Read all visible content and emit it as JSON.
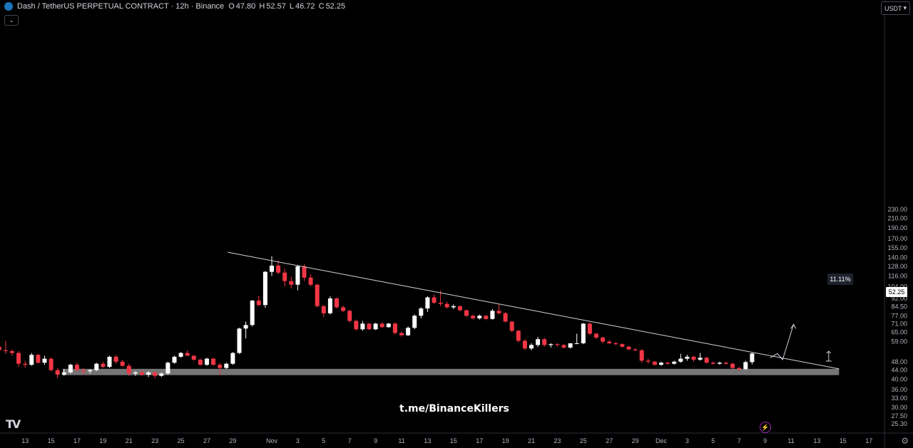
{
  "header": {
    "symbol": "Dash / TetherUS PERPETUAL CONTRACT · 12h · Binance",
    "o_label": "O",
    "o": "47.80",
    "h_label": "H",
    "h": "52.57",
    "l_label": "L",
    "l": "46.72",
    "c_label": "C",
    "c": "52.25"
  },
  "currency": "USDT",
  "watermark": "t.me/BinanceKillers",
  "tv_logo": "TV",
  "current_price": "52.25",
  "measure_label": "11.11%",
  "colors": {
    "up": "#ffffff",
    "down": "#f23645",
    "background": "#000000",
    "zone": "#8a8a8a",
    "trendline": "#d1d4dc"
  },
  "icons": [
    "collapse-chevron-icon",
    "currency-dropdown-icon",
    "lightning-icon",
    "settings-gear-icon"
  ],
  "chart_data": {
    "type": "candlestick",
    "scale": "log",
    "timeframe": "12h",
    "y_ticks": [
      230.0,
      210.0,
      190.0,
      170.0,
      155.0,
      140.0,
      128.0,
      116.0,
      104.0,
      92.0,
      84.5,
      77.0,
      71.0,
      65.0,
      59.0,
      52.25,
      48.0,
      44.0,
      40.0,
      36.0,
      33.0,
      30.0,
      27.5,
      25.3
    ],
    "y_tick_labels": [
      "230.00",
      "210.00",
      "190.00",
      "170.00",
      "155.00",
      "140.00",
      "128.00",
      "116.00",
      "104.00",
      "92.00",
      "84.50",
      "77.00",
      "71.00",
      "65.00",
      "59.00",
      "",
      "48.00",
      "44.00",
      "40.00",
      "36.00",
      "33.00",
      "30.00",
      "27.50",
      "25.30"
    ],
    "x_tick_labels": [
      "13",
      "15",
      "17",
      "19",
      "21",
      "23",
      "25",
      "27",
      "29",
      "Nov",
      "3",
      "5",
      "7",
      "9",
      "11",
      "13",
      "15",
      "17",
      "19",
      "21",
      "23",
      "25",
      "27",
      "29",
      "Dec",
      "3",
      "5",
      "7",
      "9",
      "11",
      "13",
      "15",
      "17"
    ],
    "x_tick_days": [
      -19,
      -17,
      -15,
      -13,
      -11,
      -9,
      -7,
      -5,
      -3,
      0,
      2,
      4,
      6,
      8,
      10,
      12,
      14,
      16,
      18,
      20,
      22,
      24,
      26,
      28,
      30,
      32,
      34,
      36,
      38,
      40,
      42,
      44,
      46
    ],
    "candles": [
      [
        39.5,
        56.5,
        38.0,
        56.0
      ],
      [
        56.0,
        58.5,
        53.5,
        54.0
      ],
      [
        54.0,
        59.5,
        52.0,
        53.5
      ],
      [
        53.5,
        54.5,
        51.0,
        52.5
      ],
      [
        52.5,
        53.5,
        45.5,
        47.0
      ],
      [
        47.0,
        48.5,
        45.0,
        46.5
      ],
      [
        46.5,
        52.5,
        46.0,
        51.5
      ],
      [
        51.5,
        52.0,
        47.0,
        47.5
      ],
      [
        47.5,
        51.0,
        46.5,
        49.5
      ],
      [
        49.5,
        50.0,
        43.5,
        44.0
      ],
      [
        44.0,
        45.0,
        40.5,
        42.0
      ],
      [
        42.0,
        44.5,
        41.5,
        43.0
      ],
      [
        43.0,
        47.0,
        42.5,
        46.5
      ],
      [
        46.5,
        47.5,
        43.5,
        44.0
      ],
      [
        44.0,
        45.0,
        42.0,
        43.5
      ],
      [
        43.5,
        44.5,
        42.5,
        44.0
      ],
      [
        44.0,
        47.5,
        43.5,
        47.0
      ],
      [
        47.0,
        48.0,
        45.0,
        45.5
      ],
      [
        45.5,
        51.0,
        45.0,
        50.5
      ],
      [
        50.5,
        51.5,
        47.0,
        48.0
      ],
      [
        48.0,
        49.0,
        45.5,
        46.0
      ],
      [
        46.0,
        47.0,
        41.5,
        42.5
      ],
      [
        42.5,
        43.5,
        41.5,
        43.0
      ],
      [
        43.0,
        44.0,
        41.5,
        42.0
      ],
      [
        42.0,
        43.5,
        41.0,
        43.0
      ],
      [
        43.0,
        43.5,
        40.5,
        41.5
      ],
      [
        41.5,
        43.0,
        41.0,
        42.5
      ],
      [
        42.5,
        48.0,
        42.0,
        47.5
      ],
      [
        47.5,
        51.0,
        47.0,
        50.5
      ],
      [
        50.5,
        53.0,
        50.0,
        52.5
      ],
      [
        52.5,
        54.0,
        51.0,
        51.0
      ],
      [
        51.0,
        51.5,
        48.5,
        49.0
      ],
      [
        49.0,
        49.5,
        46.0,
        46.5
      ],
      [
        46.5,
        50.0,
        46.0,
        49.5
      ],
      [
        49.5,
        50.0,
        46.0,
        46.5
      ],
      [
        46.5,
        47.5,
        42.0,
        45.0
      ],
      [
        45.0,
        47.5,
        44.5,
        47.0
      ],
      [
        47.0,
        53.0,
        46.5,
        52.5
      ],
      [
        52.5,
        68.0,
        52.0,
        67.5
      ],
      [
        67.5,
        72.5,
        61.0,
        70.0
      ],
      [
        70.0,
        90.5,
        69.0,
        90.0
      ],
      [
        90.0,
        94.5,
        85.0,
        86.0
      ],
      [
        86.0,
        122.0,
        83.5,
        121.0
      ],
      [
        121.0,
        142.0,
        116.0,
        129.0
      ],
      [
        129.0,
        136.0,
        118.0,
        120.0
      ],
      [
        120.0,
        125.0,
        104.0,
        110.0
      ],
      [
        110.0,
        115.0,
        102.0,
        106.0
      ],
      [
        106.0,
        130.0,
        100.0,
        128.0
      ],
      [
        128.0,
        131.0,
        110.0,
        114.0
      ],
      [
        114.0,
        118.0,
        104.0,
        106.0
      ],
      [
        106.0,
        107.0,
        84.0,
        85.0
      ],
      [
        85.0,
        86.0,
        76.0,
        79.0
      ],
      [
        79.0,
        94.0,
        78.0,
        92.0
      ],
      [
        92.0,
        93.0,
        83.0,
        84.0
      ],
      [
        84.0,
        85.5,
        80.0,
        81.0
      ],
      [
        81.0,
        82.0,
        72.0,
        73.0
      ],
      [
        73.0,
        74.0,
        66.0,
        67.0
      ],
      [
        67.0,
        73.0,
        66.0,
        71.0
      ],
      [
        71.0,
        71.5,
        66.5,
        67.0
      ],
      [
        67.0,
        71.5,
        66.5,
        71.0
      ],
      [
        71.0,
        72.0,
        68.0,
        68.5
      ],
      [
        68.5,
        71.5,
        68.0,
        71.0
      ],
      [
        71.0,
        72.0,
        63.5,
        64.5
      ],
      [
        64.5,
        65.5,
        62.0,
        63.0
      ],
      [
        63.0,
        69.0,
        62.5,
        68.0
      ],
      [
        68.0,
        78.0,
        67.0,
        77.0
      ],
      [
        77.0,
        84.0,
        75.0,
        83.0
      ],
      [
        83.0,
        94.0,
        80.0,
        93.0
      ],
      [
        93.0,
        96.0,
        87.0,
        88.0
      ],
      [
        88.0,
        100.0,
        85.0,
        87.0
      ],
      [
        87.0,
        89.0,
        83.0,
        84.0
      ],
      [
        84.0,
        86.5,
        82.5,
        85.0
      ],
      [
        85.0,
        85.5,
        80.5,
        81.5
      ],
      [
        81.5,
        82.0,
        76.0,
        77.0
      ],
      [
        77.0,
        78.0,
        74.0,
        75.0
      ],
      [
        75.0,
        78.0,
        74.0,
        77.0
      ],
      [
        77.0,
        77.5,
        73.5,
        74.5
      ],
      [
        74.5,
        82.5,
        74.0,
        81.0
      ],
      [
        81.0,
        87.0,
        78.0,
        79.0
      ],
      [
        79.0,
        80.0,
        72.0,
        72.5
      ],
      [
        72.5,
        73.0,
        65.0,
        66.0
      ],
      [
        66.0,
        66.5,
        58.5,
        59.5
      ],
      [
        59.5,
        60.5,
        54.0,
        55.0
      ],
      [
        55.0,
        58.0,
        54.0,
        57.0
      ],
      [
        57.0,
        62.0,
        56.0,
        60.5
      ],
      [
        60.5,
        61.5,
        56.0,
        57.0
      ],
      [
        57.0,
        58.0,
        55.5,
        57.5
      ],
      [
        57.5,
        58.0,
        56.0,
        57.0
      ],
      [
        57.0,
        57.5,
        55.0,
        55.5
      ],
      [
        55.5,
        58.0,
        55.0,
        58.0
      ],
      [
        58.0,
        64.0,
        57.5,
        58.0
      ],
      [
        58.0,
        71.5,
        57.5,
        71.0
      ],
      [
        71.0,
        72.0,
        63.0,
        64.0
      ],
      [
        64.0,
        64.5,
        60.5,
        61.5
      ],
      [
        61.5,
        62.0,
        58.0,
        59.0
      ],
      [
        59.0,
        60.0,
        57.5,
        58.0
      ],
      [
        58.0,
        59.0,
        57.0,
        57.5
      ],
      [
        57.5,
        58.0,
        55.5,
        56.0
      ],
      [
        56.0,
        56.5,
        54.0,
        54.5
      ],
      [
        54.5,
        55.0,
        53.5,
        54.0
      ],
      [
        54.0,
        54.5,
        47.5,
        48.5
      ],
      [
        48.5,
        49.5,
        47.0,
        48.0
      ],
      [
        48.0,
        48.5,
        46.0,
        46.5
      ],
      [
        46.5,
        48.0,
        46.0,
        47.5
      ],
      [
        47.5,
        48.0,
        46.5,
        47.0
      ],
      [
        47.0,
        48.5,
        46.5,
        48.0
      ],
      [
        48.0,
        52.0,
        47.5,
        49.5
      ],
      [
        49.5,
        51.5,
        48.5,
        50.5
      ],
      [
        50.5,
        51.0,
        48.0,
        49.0
      ],
      [
        49.0,
        52.5,
        48.5,
        50.0
      ],
      [
        50.0,
        50.5,
        47.0,
        47.5
      ],
      [
        47.5,
        48.0,
        46.5,
        47.0
      ],
      [
        47.0,
        48.0,
        46.5,
        47.5
      ],
      [
        47.5,
        48.0,
        46.5,
        47.0
      ],
      [
        47.0,
        47.5,
        44.5,
        45.0
      ],
      [
        45.0,
        45.5,
        43.5,
        44.5
      ],
      [
        44.5,
        48.5,
        44.0,
        47.8
      ],
      [
        47.8,
        52.57,
        46.72,
        52.25
      ]
    ],
    "candles_note_format": "open, high, low, close",
    "first_candle_day": -21.5,
    "candle_step_days": 0.5,
    "trendline": {
      "from": [
        -3.4,
        148.0
      ],
      "to": [
        43.7,
        44.6
      ]
    },
    "support_zone": {
      "from_day": -16.1,
      "to_day": 43.7,
      "low": 41.8,
      "high": 44.6
    },
    "projection": [
      [
        38.4,
        50.0
      ],
      [
        38.95,
        52.2
      ],
      [
        39.35,
        49.0
      ],
      [
        40.2,
        70.5
      ]
    ],
    "measure": {
      "day": 42.9,
      "from": 48.3,
      "to": 53.5,
      "label": "11.11%"
    }
  }
}
